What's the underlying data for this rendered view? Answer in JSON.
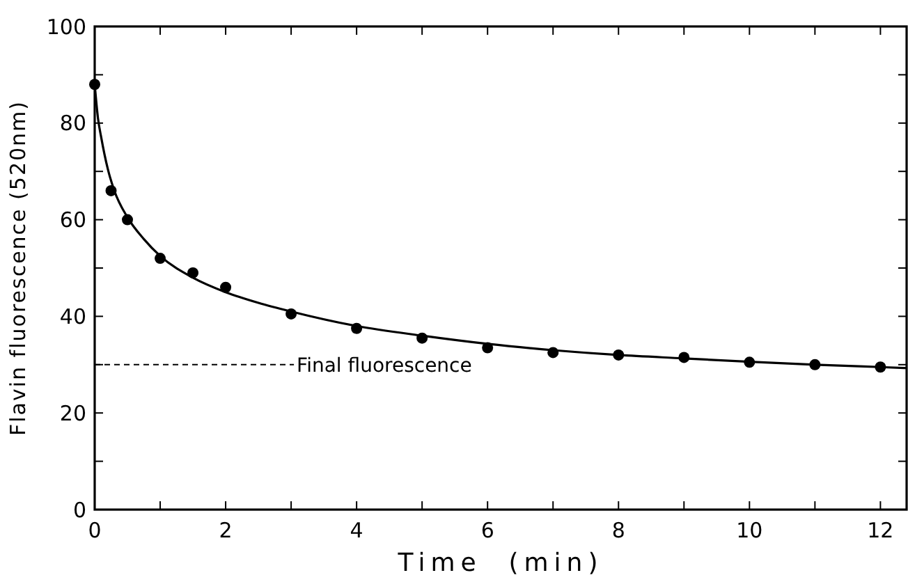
{
  "chart_data": {
    "type": "scatter",
    "xlabel": "Time  (min)",
    "ylabel": "Flavin fluorescence (520nm)",
    "xlim": [
      0,
      12.4
    ],
    "ylim": [
      0,
      100
    ],
    "xticks": [
      0,
      {
        "value": 1,
        "label": null
      },
      2,
      {
        "value": 3,
        "label": null
      },
      4,
      {
        "value": 5,
        "label": null
      },
      6,
      {
        "value": 7,
        "label": null
      },
      8,
      {
        "value": 9,
        "label": null
      },
      10,
      {
        "value": 11,
        "label": null
      },
      12
    ],
    "yticks": [
      0,
      {
        "value": 10,
        "label": null
      },
      20,
      {
        "value": 30,
        "label": null
      },
      40,
      {
        "value": 50,
        "label": null
      },
      60,
      {
        "value": 70,
        "label": null
      },
      80,
      {
        "value": 90,
        "label": null
      },
      100
    ],
    "grid": false,
    "series": [
      {
        "color": "#000000",
        "marker": "circle",
        "x": [
          0,
          0.25,
          0.5,
          1,
          1.5,
          2,
          3,
          4,
          5,
          6,
          7,
          8,
          9,
          10,
          11,
          12
        ],
        "values": [
          88,
          66,
          60,
          52,
          49,
          46,
          40.5,
          37.5,
          35.5,
          33.5,
          32.5,
          32,
          31.5,
          30.5,
          30,
          29.5
        ]
      },
      {
        "type": "line",
        "color": "#000000",
        "marker": "none",
        "line_style": "solid",
        "x": [
          0,
          0.05,
          0.1,
          0.2,
          0.3,
          0.5,
          0.75,
          1,
          1.5,
          2,
          2.5,
          3,
          4,
          5,
          6,
          7,
          8,
          9,
          10,
          11,
          12,
          12.4
        ],
        "values": [
          88,
          81,
          77,
          70.5,
          66,
          60.5,
          56,
          52.5,
          48,
          45,
          42.8,
          41,
          38,
          36,
          34.3,
          33,
          32,
          31.3,
          30.6,
          30,
          29.5,
          29.3
        ]
      }
    ],
    "ref_lines": [
      {
        "axis": "y",
        "value": 30,
        "label": "Final fluorescence",
        "line_style": "dashed",
        "color": "#000000"
      }
    ]
  }
}
